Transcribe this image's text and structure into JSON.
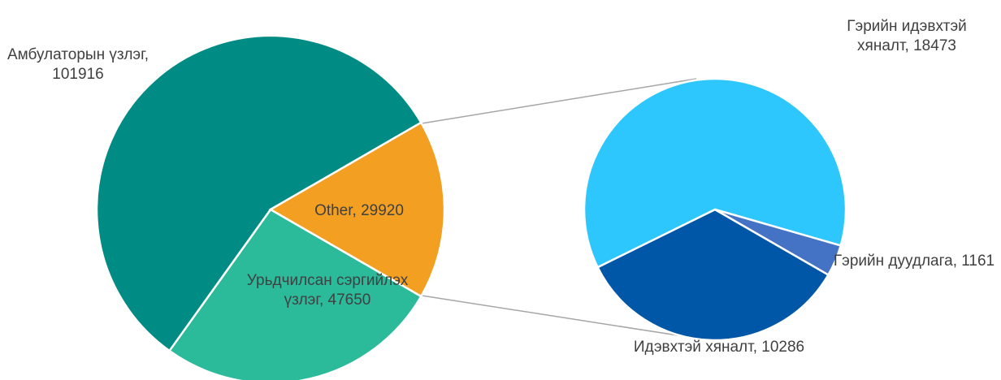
{
  "chart_data": [
    {
      "type": "pie",
      "values": [
        47650,
        101916,
        29920
      ],
      "value_labels": [
        "Урьдчилсан сэргийлэх үзлэг, 47650",
        "Амбулаторын үзлэг, 101916",
        "Other, 29920"
      ],
      "colors": [
        "#2bba9a",
        "#008b84",
        "#f29f22"
      ]
    },
    {
      "type": "pie",
      "values": [
        10286,
        18473,
        1161
      ],
      "value_labels": [
        "Идэвхтэй хяналт, 10286",
        "Гэрийн идэвхтэй хяналт, 18473",
        "Гэрийн дуудлага, 1161"
      ],
      "colors": [
        "#0057a8",
        "#2ec7fd",
        "#4472c4"
      ]
    }
  ]
}
